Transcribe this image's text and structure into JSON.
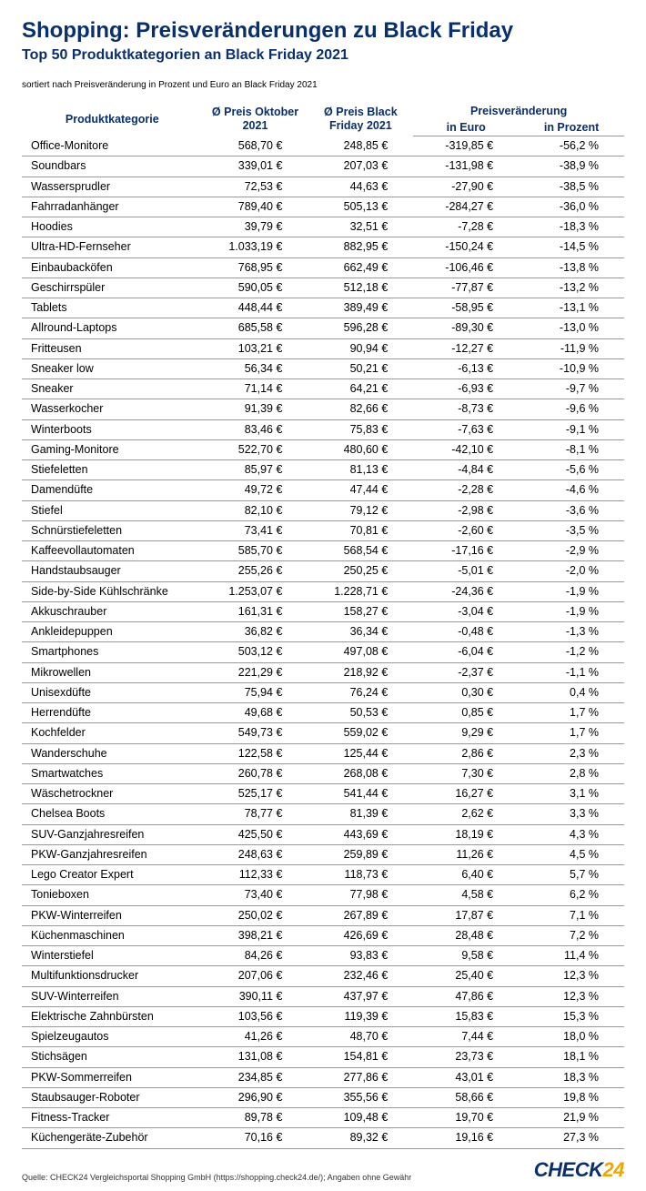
{
  "title": "Shopping: Preisveränderungen zu Black Friday",
  "subtitle": "Top 50 Produktkategorien an Black Friday 2021",
  "sort_note": "sortiert nach Preisveränderung in Prozent und Euro an Black Friday 2021",
  "headers": {
    "category": "Produktkategorie",
    "price_oct": "Ø Preis Oktober 2021",
    "price_bf": "Ø Preis Black Friday 2021",
    "change_group": "Preisveränderung",
    "change_euro": "in Euro",
    "change_pct": "in Prozent"
  },
  "columns": [
    "category",
    "price_oct",
    "price_bf",
    "change_euro",
    "change_pct"
  ],
  "rows": [
    [
      "Office-Monitore",
      "568,70 €",
      "248,85 €",
      "-319,85 €",
      "-56,2 %"
    ],
    [
      "Soundbars",
      "339,01 €",
      "207,03 €",
      "-131,98 €",
      "-38,9 %"
    ],
    [
      "Wassersprudler",
      "72,53 €",
      "44,63 €",
      "-27,90 €",
      "-38,5 %"
    ],
    [
      "Fahrradanhänger",
      "789,40 €",
      "505,13 €",
      "-284,27 €",
      "-36,0 %"
    ],
    [
      "Hoodies",
      "39,79 €",
      "32,51 €",
      "-7,28 €",
      "-18,3 %"
    ],
    [
      "Ultra-HD-Fernseher",
      "1.033,19 €",
      "882,95 €",
      "-150,24 €",
      "-14,5 %"
    ],
    [
      "Einbaubacköfen",
      "768,95 €",
      "662,49 €",
      "-106,46 €",
      "-13,8 %"
    ],
    [
      "Geschirrspüler",
      "590,05 €",
      "512,18 €",
      "-77,87 €",
      "-13,2 %"
    ],
    [
      "Tablets",
      "448,44 €",
      "389,49 €",
      "-58,95 €",
      "-13,1 %"
    ],
    [
      "Allround-Laptops",
      "685,58 €",
      "596,28 €",
      "-89,30 €",
      "-13,0 %"
    ],
    [
      "Fritteusen",
      "103,21 €",
      "90,94 €",
      "-12,27 €",
      "-11,9 %"
    ],
    [
      "Sneaker low",
      "56,34 €",
      "50,21 €",
      "-6,13 €",
      "-10,9 %"
    ],
    [
      "Sneaker",
      "71,14 €",
      "64,21 €",
      "-6,93 €",
      "-9,7 %"
    ],
    [
      "Wasserkocher",
      "91,39 €",
      "82,66 €",
      "-8,73 €",
      "-9,6 %"
    ],
    [
      "Winterboots",
      "83,46 €",
      "75,83 €",
      "-7,63 €",
      "-9,1 %"
    ],
    [
      "Gaming-Monitore",
      "522,70 €",
      "480,60 €",
      "-42,10 €",
      "-8,1 %"
    ],
    [
      "Stiefeletten",
      "85,97 €",
      "81,13 €",
      "-4,84 €",
      "-5,6 %"
    ],
    [
      "Damendüfte",
      "49,72 €",
      "47,44 €",
      "-2,28 €",
      "-4,6 %"
    ],
    [
      "Stiefel",
      "82,10 €",
      "79,12 €",
      "-2,98 €",
      "-3,6 %"
    ],
    [
      "Schnürstiefeletten",
      "73,41 €",
      "70,81 €",
      "-2,60 €",
      "-3,5 %"
    ],
    [
      "Kaffeevollautomaten",
      "585,70 €",
      "568,54 €",
      "-17,16 €",
      "-2,9 %"
    ],
    [
      "Handstaubsauger",
      "255,26 €",
      "250,25 €",
      "-5,01 €",
      "-2,0 %"
    ],
    [
      "Side-by-Side Kühlschränke",
      "1.253,07 €",
      "1.228,71 €",
      "-24,36 €",
      "-1,9 %"
    ],
    [
      "Akkuschrauber",
      "161,31 €",
      "158,27 €",
      "-3,04 €",
      "-1,9 %"
    ],
    [
      "Ankleidepuppen",
      "36,82 €",
      "36,34 €",
      "-0,48 €",
      "-1,3 %"
    ],
    [
      "Smartphones",
      "503,12 €",
      "497,08 €",
      "-6,04 €",
      "-1,2 %"
    ],
    [
      "Mikrowellen",
      "221,29 €",
      "218,92 €",
      "-2,37 €",
      "-1,1 %"
    ],
    [
      "Unisexdüfte",
      "75,94 €",
      "76,24 €",
      "0,30 €",
      "0,4 %"
    ],
    [
      "Herrendüfte",
      "49,68 €",
      "50,53 €",
      "0,85 €",
      "1,7 %"
    ],
    [
      "Kochfelder",
      "549,73 €",
      "559,02 €",
      "9,29 €",
      "1,7 %"
    ],
    [
      "Wanderschuhe",
      "122,58 €",
      "125,44 €",
      "2,86 €",
      "2,3 %"
    ],
    [
      "Smartwatches",
      "260,78 €",
      "268,08 €",
      "7,30 €",
      "2,8 %"
    ],
    [
      "Wäschetrockner",
      "525,17 €",
      "541,44 €",
      "16,27 €",
      "3,1 %"
    ],
    [
      "Chelsea Boots",
      "78,77 €",
      "81,39 €",
      "2,62 €",
      "3,3 %"
    ],
    [
      "SUV-Ganzjahresreifen",
      "425,50 €",
      "443,69 €",
      "18,19 €",
      "4,3 %"
    ],
    [
      "PKW-Ganzjahresreifen",
      "248,63 €",
      "259,89 €",
      "11,26 €",
      "4,5 %"
    ],
    [
      "Lego Creator Expert",
      "112,33 €",
      "118,73 €",
      "6,40 €",
      "5,7 %"
    ],
    [
      "Tonieboxen",
      "73,40 €",
      "77,98 €",
      "4,58 €",
      "6,2 %"
    ],
    [
      "PKW-Winterreifen",
      "250,02 €",
      "267,89 €",
      "17,87 €",
      "7,1 %"
    ],
    [
      "Küchenmaschinen",
      "398,21 €",
      "426,69 €",
      "28,48 €",
      "7,2 %"
    ],
    [
      "Winterstiefel",
      "84,26 €",
      "93,83 €",
      "9,58 €",
      "11,4 %"
    ],
    [
      "Multifunktionsdrucker",
      "207,06 €",
      "232,46 €",
      "25,40 €",
      "12,3 %"
    ],
    [
      "SUV-Winterreifen",
      "390,11 €",
      "437,97 €",
      "47,86 €",
      "12,3 %"
    ],
    [
      "Elektrische Zahnbürsten",
      "103,56 €",
      "119,39 €",
      "15,83 €",
      "15,3 %"
    ],
    [
      "Spielzeugautos",
      "41,26 €",
      "48,70 €",
      "7,44 €",
      "18,0 %"
    ],
    [
      "Stichsägen",
      "131,08 €",
      "154,81 €",
      "23,73 €",
      "18,1 %"
    ],
    [
      "PKW-Sommerreifen",
      "234,85 €",
      "277,86 €",
      "43,01 €",
      "18,3 %"
    ],
    [
      "Staubsauger-Roboter",
      "296,90 €",
      "355,56 €",
      "58,66 €",
      "19,8 %"
    ],
    [
      "Fitness-Tracker",
      "89,78 €",
      "109,48 €",
      "19,70 €",
      "21,9 %"
    ],
    [
      "Küchengeräte-Zubehör",
      "70,16 €",
      "89,32 €",
      "19,16 €",
      "27,3 %"
    ]
  ],
  "source": "Quelle: CHECK24 Vergleichsportal Shopping GmbH (https://shopping.check24.de/); Angaben ohne Gewähr",
  "logo": {
    "part1": "CHECK",
    "part2": "24"
  },
  "colors": {
    "heading": "#0a2f6b",
    "logo_orange": "#f0a500",
    "border": "#999999",
    "text": "#000000",
    "background": "#ffffff"
  },
  "typography": {
    "title_fontsize": 24,
    "subtitle_fontsize": 16,
    "body_fontsize": 12.5,
    "note_fontsize": 10,
    "source_fontsize": 9
  }
}
